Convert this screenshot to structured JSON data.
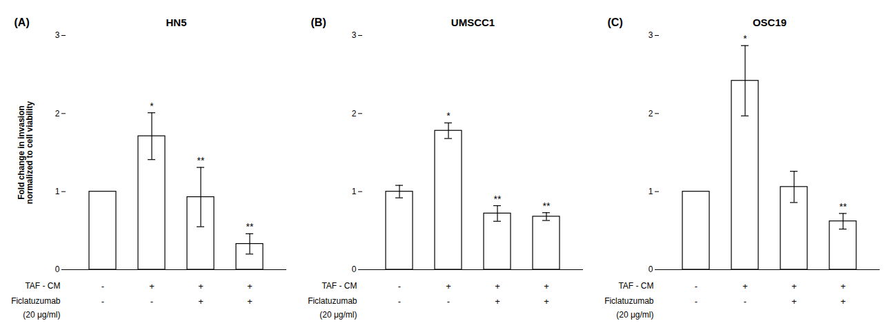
{
  "chart_data": [
    {
      "type": "bar",
      "panel_label": "(A)",
      "title": "HN5",
      "ylabel": "Fold change in invasion\nnormalized to cell viability",
      "categories": [
        null,
        null,
        null,
        null
      ],
      "values": [
        1.0,
        1.71,
        0.93,
        0.33
      ],
      "errors": [
        0.0,
        0.3,
        0.38,
        0.13
      ],
      "sig_labels": [
        null,
        "*",
        "**",
        "**"
      ],
      "taf_cm_label": "TAF - CM",
      "taf_cm": [
        "-",
        "+",
        "+",
        "+"
      ],
      "ficlatuzumab_label": "Ficlatuzumab",
      "ficlatuzumab_sublabel": "(20 μg/ml)",
      "ficlatuzumab": [
        "-",
        "-",
        "+",
        "+"
      ],
      "color": "white",
      "ylim": [
        0,
        3
      ],
      "yticks": [
        0,
        1,
        2,
        3
      ],
      "tick_labels": "y"
    },
    {
      "type": "bar",
      "panel_label": "(B)",
      "title": "UMSCC1",
      "categories": [
        null,
        null,
        null,
        null
      ],
      "values": [
        1.0,
        1.78,
        0.72,
        0.68
      ],
      "errors": [
        0.08,
        0.1,
        0.1,
        0.05
      ],
      "sig_labels": [
        null,
        "*",
        "**",
        "**"
      ],
      "taf_cm_label": "TAF - CM",
      "taf_cm": [
        "-",
        "+",
        "+",
        "+"
      ],
      "ficlatuzumab_label": "Ficlatuzumab",
      "ficlatuzumab_sublabel": "(20 μg/ml)",
      "ficlatuzumab": [
        "-",
        "-",
        "+",
        "+"
      ],
      "color": "white",
      "ylim": [
        0,
        3
      ],
      "yticks": [
        0,
        1,
        2,
        3
      ],
      "tick_labels": "y"
    },
    {
      "type": "bar",
      "panel_label": "(C)",
      "title": "OSC19",
      "categories": [
        null,
        null,
        null,
        null
      ],
      "values": [
        1.0,
        2.42,
        1.06,
        0.62
      ],
      "errors": [
        0.0,
        0.45,
        0.2,
        0.1
      ],
      "sig_labels": [
        null,
        "*",
        null,
        "**"
      ],
      "taf_cm_label": "TAF - CM",
      "taf_cm": [
        "-",
        "+",
        "+",
        "+"
      ],
      "ficlatuzumab_label": "Ficlatuzumab",
      "ficlatuzumab_sublabel": "(20 μg/ml)",
      "ficlatuzumab": [
        "-",
        "-",
        "+",
        "+"
      ],
      "color": "white",
      "ylim": [
        0,
        3
      ],
      "yticks": [
        0,
        1,
        2,
        3
      ],
      "tick_labels": "y"
    }
  ]
}
